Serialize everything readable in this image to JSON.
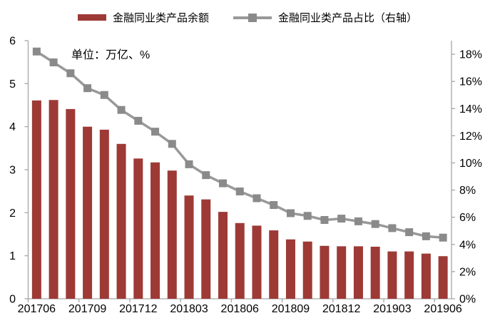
{
  "annotation": "单位：万亿、%",
  "colors": {
    "bar": "#9d3a36",
    "line": "#999999",
    "marker": "#8a8a8a",
    "axis": "#a6a6a6",
    "text": "#000000",
    "background": "#ffffff"
  },
  "legend": {
    "items": [
      {
        "label": "金融同业类产品余额",
        "type": "bar"
      },
      {
        "label": "金融同业类产品占比（右轴）",
        "type": "line"
      }
    ]
  },
  "chart_data": {
    "type": "bar",
    "title": "",
    "categories": [
      "201706",
      "201707",
      "201708",
      "201709",
      "201710",
      "201711",
      "201712",
      "201801",
      "201802",
      "201803",
      "201804",
      "201805",
      "201806",
      "201807",
      "201808",
      "201809",
      "201810",
      "201811",
      "201812",
      "201901",
      "201902",
      "201903",
      "201904",
      "201905",
      "201906"
    ],
    "series": [
      {
        "name": "金融同业类产品余额",
        "type": "bar",
        "axis": "left",
        "unit": "万亿",
        "values": [
          4.61,
          4.62,
          4.41,
          4.0,
          3.93,
          3.6,
          3.26,
          3.17,
          2.98,
          2.4,
          2.31,
          2.02,
          1.76,
          1.7,
          1.59,
          1.38,
          1.33,
          1.23,
          1.22,
          1.22,
          1.21,
          1.1,
          1.1,
          1.05,
          0.99
        ]
      },
      {
        "name": "金融同业类产品占比（右轴）",
        "type": "line",
        "axis": "right",
        "unit": "%",
        "values": [
          18.2,
          17.4,
          16.6,
          15.5,
          15.0,
          13.9,
          13.1,
          12.3,
          11.4,
          9.9,
          9.1,
          8.5,
          7.9,
          7.4,
          6.9,
          6.3,
          6.1,
          5.8,
          5.9,
          5.7,
          5.5,
          5.2,
          4.9,
          4.6,
          4.5
        ]
      }
    ],
    "left_axis": {
      "min": 0,
      "max": 6,
      "tick_step": 1,
      "tick_labels": [
        "0",
        "1",
        "2",
        "3",
        "4",
        "5",
        "6"
      ]
    },
    "right_axis": {
      "min": 0,
      "max": 19,
      "tick_step": 2,
      "tick_labels": [
        "0%",
        "2%",
        "4%",
        "6%",
        "8%",
        "10%",
        "12%",
        "14%",
        "16%",
        "18%"
      ]
    },
    "x_tick_labels": [
      "201706",
      "201709",
      "201712",
      "201803",
      "201806",
      "201809",
      "201812",
      "201903",
      "201906"
    ],
    "x_label_every": 3,
    "grid": false,
    "legend_position": "top"
  }
}
